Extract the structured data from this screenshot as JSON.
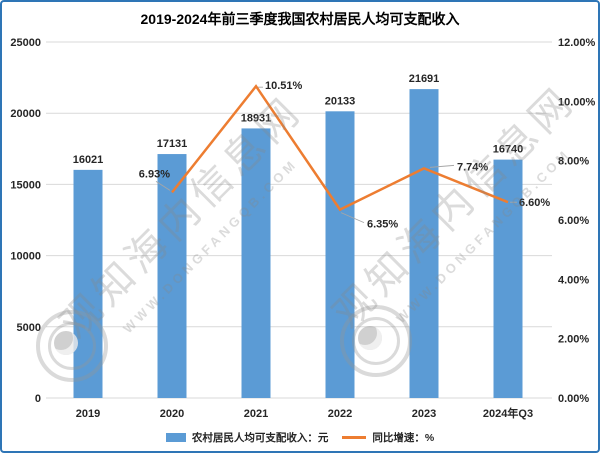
{
  "title": "2019-2024年前三季度我国农村居民人均可支配收入",
  "legend": {
    "bar_label": "农村居民人均可支配收入：元",
    "line_label": "同比增速：%"
  },
  "watermark": {
    "name": "观知海内信息网",
    "url": "WWW.DONGFANGQB.COM"
  },
  "colors": {
    "bar": "#5B9BD5",
    "line": "#ED7D31",
    "border": "#2E75B6",
    "grid": "#D9D9D9",
    "text": "#262626",
    "leader": "#A6A6A6"
  },
  "chart_data": {
    "type": "bar+line",
    "categories": [
      "2019",
      "2020",
      "2021",
      "2022",
      "2023",
      "2024年Q3"
    ],
    "series": [
      {
        "name": "农村居民人均可支配收入：元",
        "type": "bar",
        "axis": "left",
        "values": [
          16021,
          17131,
          18931,
          20133,
          21691,
          16740
        ],
        "bar_labels": [
          "16021",
          "17131",
          "18931",
          "20133",
          "21691",
          "16740"
        ]
      },
      {
        "name": "同比增速：%",
        "type": "line",
        "axis": "right",
        "values": [
          null,
          6.93,
          10.51,
          6.35,
          7.74,
          6.6
        ],
        "point_labels": [
          "",
          "6.93%",
          "10.51%",
          "6.35%",
          "7.74%",
          "6.60%"
        ]
      }
    ],
    "left_axis": {
      "min": 0,
      "max": 25000,
      "tick_step": 5000,
      "tick_labels": [
        "25000",
        "20000",
        "15000",
        "10000",
        "5000",
        "0"
      ]
    },
    "right_axis": {
      "min": 0,
      "max": 12,
      "tick_step": 2,
      "tick_labels": [
        "12.00%",
        "10.00%",
        "8.00%",
        "6.00%",
        "4.00%",
        "2.00%",
        "0.00%"
      ]
    },
    "grid": true,
    "legend_position": "bottom"
  }
}
